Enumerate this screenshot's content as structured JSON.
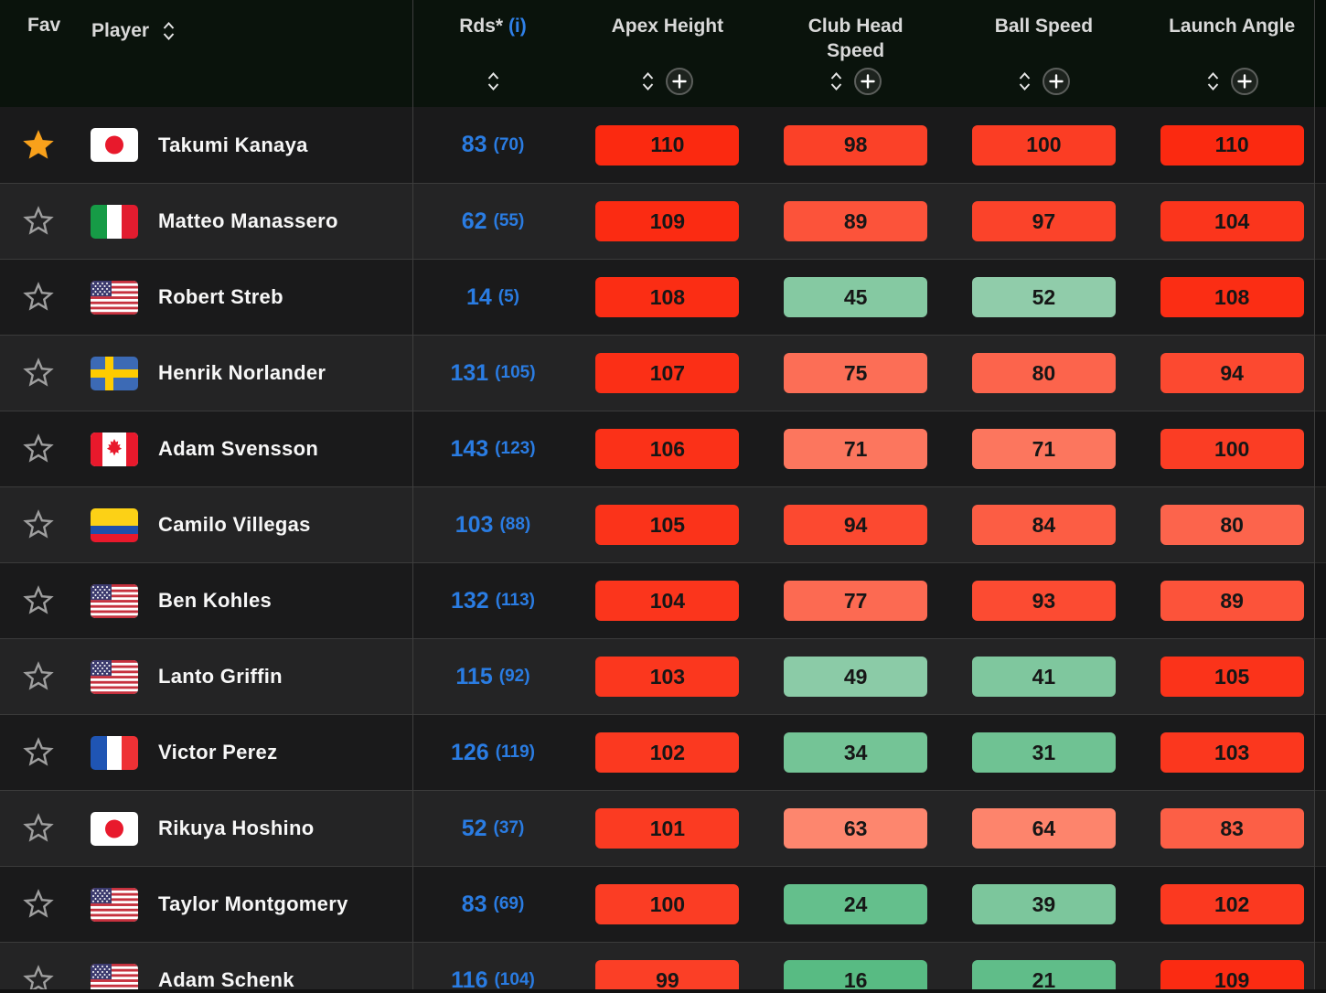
{
  "table": {
    "header": {
      "fav_label": "Fav",
      "player_label": "Player",
      "rds_label": "Rds*",
      "rds_info_label": "(i)",
      "stat_columns": [
        "Apex Height",
        "Club Head Speed",
        "Ball Speed",
        "Launch Angle"
      ]
    },
    "rows": [
      {
        "favorite": true,
        "country": "jp",
        "player": "Takumi Kanaya",
        "rds": "83",
        "rds_paren": "(70)",
        "stats": [
          110,
          98,
          100,
          110
        ]
      },
      {
        "favorite": false,
        "country": "it",
        "player": "Matteo Manassero",
        "rds": "62",
        "rds_paren": "(55)",
        "stats": [
          109,
          89,
          97,
          104
        ]
      },
      {
        "favorite": false,
        "country": "us",
        "player": "Robert Streb",
        "rds": "14",
        "rds_paren": "(5)",
        "stats": [
          108,
          45,
          52,
          108
        ]
      },
      {
        "favorite": false,
        "country": "se",
        "player": "Henrik Norlander",
        "rds": "131",
        "rds_paren": "(105)",
        "stats": [
          107,
          75,
          80,
          94
        ]
      },
      {
        "favorite": false,
        "country": "ca",
        "player": "Adam Svensson",
        "rds": "143",
        "rds_paren": "(123)",
        "stats": [
          106,
          71,
          71,
          100
        ]
      },
      {
        "favorite": false,
        "country": "co",
        "player": "Camilo Villegas",
        "rds": "103",
        "rds_paren": "(88)",
        "stats": [
          105,
          94,
          84,
          80
        ]
      },
      {
        "favorite": false,
        "country": "us",
        "player": "Ben Kohles",
        "rds": "132",
        "rds_paren": "(113)",
        "stats": [
          104,
          77,
          93,
          89
        ]
      },
      {
        "favorite": false,
        "country": "us",
        "player": "Lanto Griffin",
        "rds": "115",
        "rds_paren": "(92)",
        "stats": [
          103,
          49,
          41,
          105
        ]
      },
      {
        "favorite": false,
        "country": "fr",
        "player": "Victor Perez",
        "rds": "126",
        "rds_paren": "(119)",
        "stats": [
          102,
          34,
          31,
          103
        ]
      },
      {
        "favorite": false,
        "country": "jp",
        "player": "Rikuya Hoshino",
        "rds": "52",
        "rds_paren": "(37)",
        "stats": [
          101,
          63,
          64,
          83
        ]
      },
      {
        "favorite": false,
        "country": "us",
        "player": "Taylor Montgomery",
        "rds": "83",
        "rds_paren": "(69)",
        "stats": [
          100,
          24,
          39,
          102
        ]
      },
      {
        "favorite": false,
        "country": "us",
        "player": "Adam Schenk",
        "rds": "116",
        "rds_paren": "(104)",
        "stats": [
          99,
          16,
          21,
          109
        ]
      }
    ]
  },
  "colors": {
    "header_bg": "#0a130c",
    "row_odd": "#1a1a1b",
    "row_even": "#242425",
    "accent_blue": "#2a7ce2",
    "favorite_orange": "#f9a11b",
    "scale": {
      "pivot": 56,
      "red_low": [
        253,
        148,
        124
      ],
      "red_high": [
        251,
        41,
        16
      ],
      "red_max": 110,
      "green_low": [
        150,
        206,
        174
      ],
      "green_high": [
        85,
        186,
        129
      ],
      "green_min": 14
    }
  },
  "icons": {
    "sort": "up-down-chevrons",
    "plus": "+",
    "favorite": "star"
  }
}
